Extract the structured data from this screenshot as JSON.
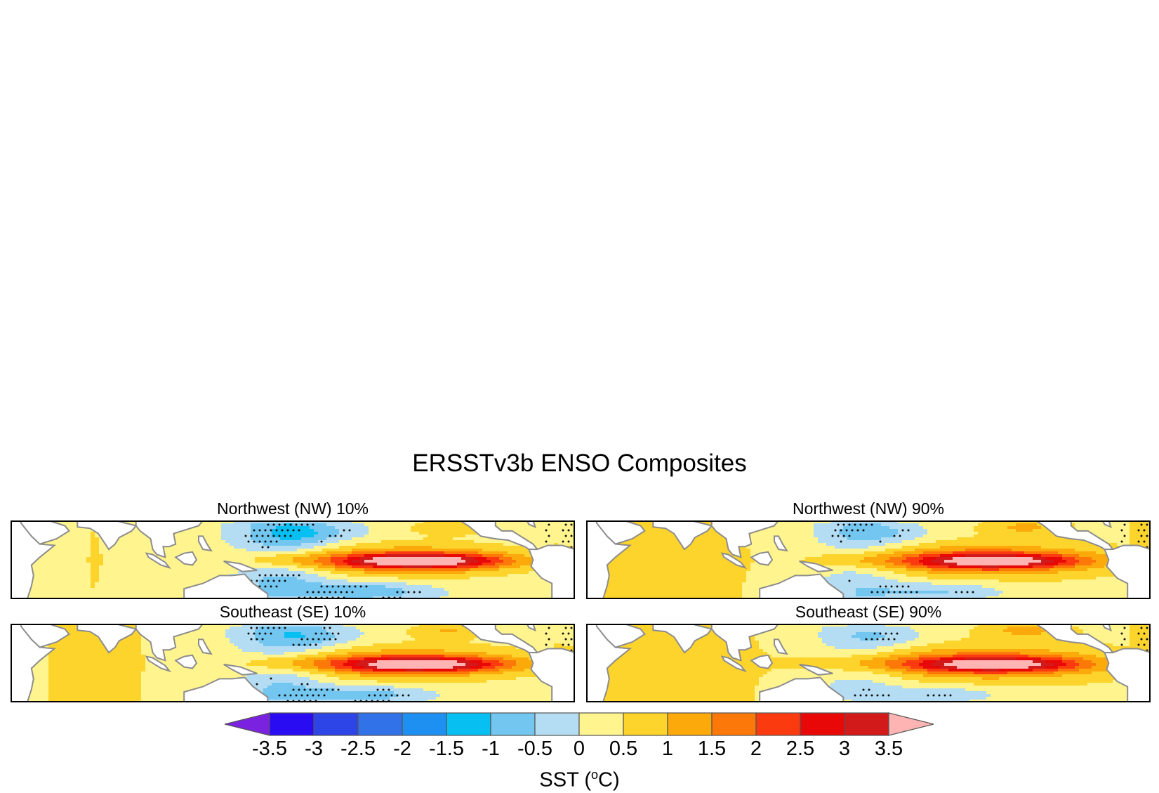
{
  "title": "ERSSTv3b ENSO Composites",
  "panels": [
    {
      "title": "Northwest (NW) 10%"
    },
    {
      "title": "Northwest (NW) 90%"
    },
    {
      "title": "Southeast (SE) 10%"
    },
    {
      "title": "Southeast (SE) 90%"
    }
  ],
  "colorbar": {
    "title_prefix": "SST (",
    "title_sup": "o",
    "title_suffix": "C)",
    "levels": [
      "-3.5",
      "-3",
      "-2.5",
      "-2",
      "-1.5",
      "-1",
      "-0.5",
      "0",
      "0.5",
      "1",
      "1.5",
      "2",
      "2.5",
      "3",
      "3.5"
    ],
    "colors": [
      "#7b22e0",
      "#2a0cf2",
      "#2d44e6",
      "#3272e8",
      "#1e90f2",
      "#08bff2",
      "#72c6f0",
      "#b4dcf2",
      "#fff48e",
      "#fdd42c",
      "#fca90c",
      "#fc7808",
      "#fc3a10",
      "#e80808",
      "#d21a1a",
      "#ffb4b4"
    ],
    "land_color": "#ffffff",
    "coast_color": "#8c8c8c"
  }
}
